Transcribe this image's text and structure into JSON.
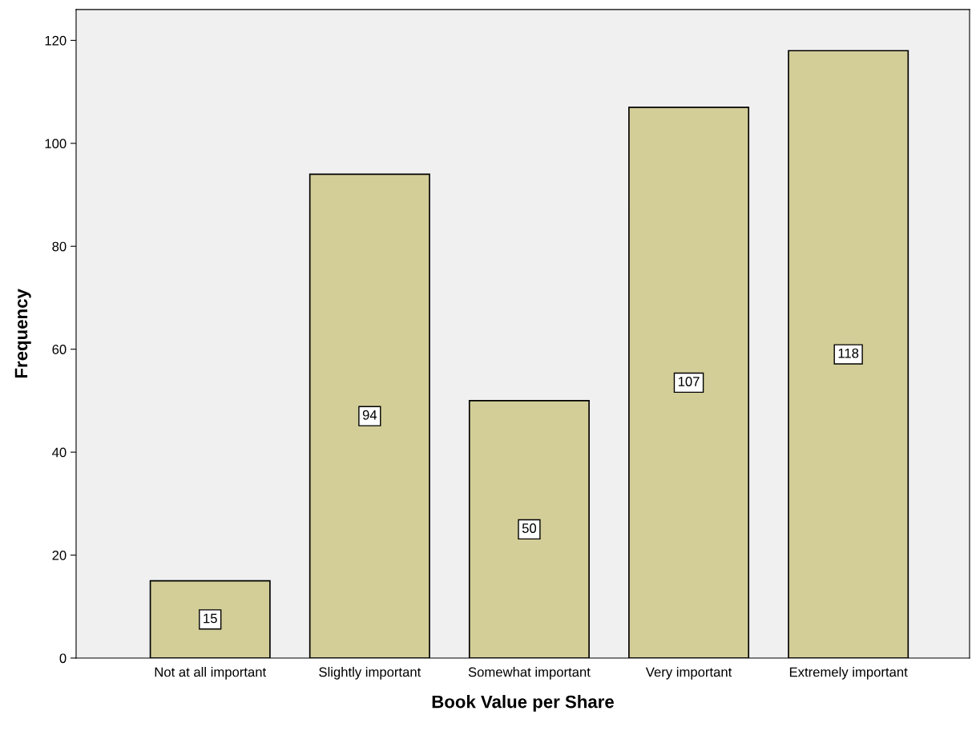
{
  "chart_data": {
    "type": "bar",
    "xlabel": "Book Value per Share",
    "ylabel": "Frequency",
    "categories": [
      "Not at all important",
      "Slightly important",
      "Somewhat important",
      "Very important",
      "Extremely important"
    ],
    "values": [
      15,
      94,
      50,
      107,
      118
    ],
    "color": "#d3cd98",
    "ylim": [
      0,
      126
    ],
    "yticks": [
      0,
      20,
      40,
      60,
      80,
      100,
      120
    ],
    "grid": false,
    "data_labels": true
  }
}
